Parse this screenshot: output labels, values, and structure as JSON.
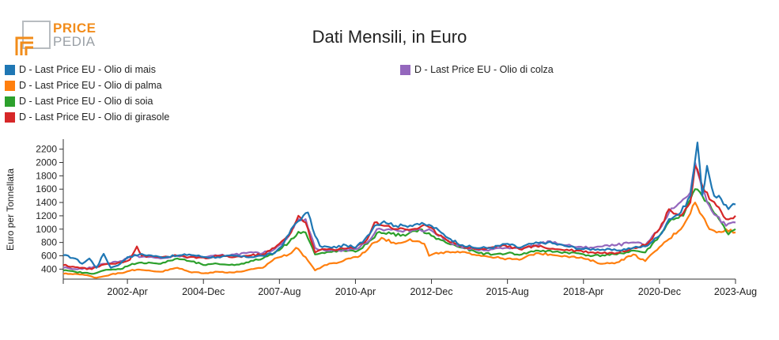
{
  "logo": {
    "word1": "PRICE",
    "word2": "PEDIA"
  },
  "colors": {
    "mais": "#1f77b4",
    "palma": "#ff7f0e",
    "soia": "#2ca02c",
    "girasole": "#d62728",
    "colza": "#9467bd"
  },
  "chart_data": {
    "type": "line",
    "title": "Dati Mensili, in Euro",
    "ylabel": "Euro per Tonnellata",
    "xlabel": "",
    "ylim": [
      250,
      2350
    ],
    "yticks": [
      400,
      600,
      800,
      1000,
      1200,
      1400,
      1600,
      1800,
      2000,
      2200
    ],
    "xrange": [
      "2000-01",
      "2023-08"
    ],
    "xticks": [
      {
        "date": "2002-04",
        "label": "2002-Apr"
      },
      {
        "date": "2004-12",
        "label": "2004-Dec"
      },
      {
        "date": "2007-08",
        "label": "2007-Aug"
      },
      {
        "date": "2010-04",
        "label": "2010-Apr"
      },
      {
        "date": "2012-12",
        "label": "2012-Dec"
      },
      {
        "date": "2015-08",
        "label": "2015-Aug"
      },
      {
        "date": "2018-04",
        "label": "2018-Apr"
      },
      {
        "date": "2020-12",
        "label": "2020-Dec"
      },
      {
        "date": "2023-08",
        "label": "2023-Aug"
      }
    ],
    "legend_position": "top-left",
    "series": [
      {
        "name": "D - Last Price EU - Olio di mais",
        "color": "#1f77b4",
        "points": [
          [
            "2000-01",
            610
          ],
          [
            "2000-06",
            560
          ],
          [
            "2000-09",
            480
          ],
          [
            "2000-12",
            560
          ],
          [
            "2001-03",
            420
          ],
          [
            "2001-06",
            630
          ],
          [
            "2001-09",
            420
          ],
          [
            "2002-01",
            480
          ],
          [
            "2002-04",
            580
          ],
          [
            "2002-09",
            620
          ],
          [
            "2003-01",
            610
          ],
          [
            "2003-06",
            580
          ],
          [
            "2004-01",
            600
          ],
          [
            "2004-06",
            620
          ],
          [
            "2005-01",
            580
          ],
          [
            "2005-06",
            580
          ],
          [
            "2006-01",
            600
          ],
          [
            "2006-06",
            580
          ],
          [
            "2007-01",
            600
          ],
          [
            "2007-06",
            640
          ],
          [
            "2007-10",
            800
          ],
          [
            "2008-02",
            1050
          ],
          [
            "2008-06",
            1200
          ],
          [
            "2008-08",
            1250
          ],
          [
            "2008-11",
            900
          ],
          [
            "2009-01",
            750
          ],
          [
            "2009-06",
            720
          ],
          [
            "2009-12",
            760
          ],
          [
            "2010-04",
            720
          ],
          [
            "2010-08",
            850
          ],
          [
            "2010-12",
            1050
          ],
          [
            "2011-04",
            1120
          ],
          [
            "2011-09",
            1050
          ],
          [
            "2012-01",
            1050
          ],
          [
            "2012-06",
            1080
          ],
          [
            "2012-12",
            1050
          ],
          [
            "2013-04",
            950
          ],
          [
            "2013-08",
            850
          ],
          [
            "2014-01",
            760
          ],
          [
            "2014-06",
            720
          ],
          [
            "2015-01",
            720
          ],
          [
            "2015-08",
            780
          ],
          [
            "2016-01",
            720
          ],
          [
            "2016-06",
            780
          ],
          [
            "2017-01",
            800
          ],
          [
            "2017-08",
            750
          ],
          [
            "2018-04",
            700
          ],
          [
            "2018-10",
            700
          ],
          [
            "2019-06",
            680
          ],
          [
            "2020-01",
            720
          ],
          [
            "2020-06",
            740
          ],
          [
            "2020-12",
            900
          ],
          [
            "2021-04",
            1150
          ],
          [
            "2021-09",
            1250
          ],
          [
            "2022-01",
            1500
          ],
          [
            "2022-04",
            2300
          ],
          [
            "2022-06",
            1500
          ],
          [
            "2022-08",
            1950
          ],
          [
            "2022-11",
            1500
          ],
          [
            "2023-02",
            1450
          ],
          [
            "2023-05",
            1300
          ],
          [
            "2023-08",
            1370
          ]
        ]
      },
      {
        "name": "D - Last Price EU - Olio di palma",
        "color": "#ff7f0e",
        "points": [
          [
            "2000-01",
            330
          ],
          [
            "2000-06",
            330
          ],
          [
            "2000-12",
            300
          ],
          [
            "2001-03",
            270
          ],
          [
            "2001-09",
            320
          ],
          [
            "2002-01",
            340
          ],
          [
            "2002-06",
            390
          ],
          [
            "2003-01",
            380
          ],
          [
            "2003-06",
            360
          ],
          [
            "2004-01",
            420
          ],
          [
            "2004-06",
            360
          ],
          [
            "2005-01",
            340
          ],
          [
            "2005-06",
            360
          ],
          [
            "2006-01",
            350
          ],
          [
            "2006-06",
            380
          ],
          [
            "2007-01",
            420
          ],
          [
            "2007-06",
            560
          ],
          [
            "2007-12",
            620
          ],
          [
            "2008-03",
            720
          ],
          [
            "2008-07",
            580
          ],
          [
            "2008-11",
            380
          ],
          [
            "2009-03",
            460
          ],
          [
            "2009-09",
            500
          ],
          [
            "2010-01",
            560
          ],
          [
            "2010-06",
            600
          ],
          [
            "2010-12",
            800
          ],
          [
            "2011-03",
            870
          ],
          [
            "2011-09",
            780
          ],
          [
            "2012-03",
            850
          ],
          [
            "2012-09",
            780
          ],
          [
            "2012-11",
            600
          ],
          [
            "2013-04",
            650
          ],
          [
            "2013-10",
            650
          ],
          [
            "2014-04",
            640
          ],
          [
            "2014-10",
            600
          ],
          [
            "2015-06",
            560
          ],
          [
            "2016-01",
            540
          ],
          [
            "2016-08",
            640
          ],
          [
            "2017-02",
            620
          ],
          [
            "2017-08",
            600
          ],
          [
            "2018-04",
            560
          ],
          [
            "2018-12",
            480
          ],
          [
            "2019-06",
            500
          ],
          [
            "2020-01",
            620
          ],
          [
            "2020-06",
            520
          ],
          [
            "2020-12",
            730
          ],
          [
            "2021-04",
            850
          ],
          [
            "2021-10",
            1050
          ],
          [
            "2022-03",
            1400
          ],
          [
            "2022-06",
            1200
          ],
          [
            "2022-09",
            1000
          ],
          [
            "2022-12",
            950
          ],
          [
            "2023-04",
            1000
          ],
          [
            "2023-08",
            950
          ]
        ]
      },
      {
        "name": "D - Last Price EU - Olio di soia",
        "color": "#2ca02c",
        "points": [
          [
            "2000-01",
            380
          ],
          [
            "2000-06",
            360
          ],
          [
            "2001-01",
            330
          ],
          [
            "2001-06",
            380
          ],
          [
            "2002-01",
            400
          ],
          [
            "2002-06",
            480
          ],
          [
            "2003-01",
            500
          ],
          [
            "2003-06",
            480
          ],
          [
            "2004-01",
            560
          ],
          [
            "2004-06",
            520
          ],
          [
            "2005-01",
            460
          ],
          [
            "2005-06",
            480
          ],
          [
            "2006-01",
            460
          ],
          [
            "2006-06",
            500
          ],
          [
            "2007-01",
            560
          ],
          [
            "2007-06",
            650
          ],
          [
            "2007-12",
            800
          ],
          [
            "2008-04",
            960
          ],
          [
            "2008-07",
            950
          ],
          [
            "2008-11",
            620
          ],
          [
            "2009-03",
            640
          ],
          [
            "2009-09",
            680
          ],
          [
            "2010-04",
            660
          ],
          [
            "2010-09",
            780
          ],
          [
            "2011-02",
            960
          ],
          [
            "2011-07",
            930
          ],
          [
            "2012-01",
            900
          ],
          [
            "2012-07",
            1000
          ],
          [
            "2012-12",
            900
          ],
          [
            "2013-06",
            800
          ],
          [
            "2014-01",
            720
          ],
          [
            "2014-08",
            640
          ],
          [
            "2015-02",
            620
          ],
          [
            "2015-08",
            640
          ],
          [
            "2016-02",
            620
          ],
          [
            "2016-08",
            680
          ],
          [
            "2017-04",
            660
          ],
          [
            "2018-01",
            640
          ],
          [
            "2018-08",
            600
          ],
          [
            "2019-06",
            620
          ],
          [
            "2020-01",
            680
          ],
          [
            "2020-06",
            650
          ],
          [
            "2020-12",
            900
          ],
          [
            "2021-05",
            1150
          ],
          [
            "2021-10",
            1200
          ],
          [
            "2022-03",
            1600
          ],
          [
            "2022-06",
            1500
          ],
          [
            "2022-10",
            1300
          ],
          [
            "2023-02",
            1100
          ],
          [
            "2023-05",
            920
          ],
          [
            "2023-08",
            1000
          ]
        ]
      },
      {
        "name": "D - Last Price EU - Olio di girasole",
        "color": "#d62728",
        "points": [
          [
            "2000-01",
            460
          ],
          [
            "2000-06",
            430
          ],
          [
            "2001-01",
            400
          ],
          [
            "2001-06",
            470
          ],
          [
            "2002-01",
            500
          ],
          [
            "2002-05",
            540
          ],
          [
            "2002-08",
            740
          ],
          [
            "2002-10",
            600
          ],
          [
            "2003-06",
            580
          ],
          [
            "2004-01",
            600
          ],
          [
            "2004-06",
            580
          ],
          [
            "2005-01",
            560
          ],
          [
            "2005-06",
            600
          ],
          [
            "2006-01",
            580
          ],
          [
            "2006-06",
            600
          ],
          [
            "2007-01",
            620
          ],
          [
            "2007-06",
            720
          ],
          [
            "2007-12",
            900
          ],
          [
            "2008-04",
            1200
          ],
          [
            "2008-07",
            1100
          ],
          [
            "2008-11",
            650
          ],
          [
            "2009-03",
            700
          ],
          [
            "2009-09",
            700
          ],
          [
            "2010-04",
            720
          ],
          [
            "2010-09",
            850
          ],
          [
            "2010-12",
            1100
          ],
          [
            "2011-05",
            1050
          ],
          [
            "2011-10",
            1000
          ],
          [
            "2012-04",
            1000
          ],
          [
            "2012-10",
            1050
          ],
          [
            "2013-04",
            900
          ],
          [
            "2013-10",
            780
          ],
          [
            "2014-04",
            720
          ],
          [
            "2014-10",
            700
          ],
          [
            "2015-06",
            760
          ],
          [
            "2016-01",
            700
          ],
          [
            "2016-08",
            750
          ],
          [
            "2017-04",
            700
          ],
          [
            "2018-01",
            680
          ],
          [
            "2018-08",
            650
          ],
          [
            "2019-06",
            640
          ],
          [
            "2020-01",
            720
          ],
          [
            "2020-06",
            760
          ],
          [
            "2020-12",
            1000
          ],
          [
            "2021-04",
            1300
          ],
          [
            "2021-09",
            1200
          ],
          [
            "2022-01",
            1400
          ],
          [
            "2022-03",
            1950
          ],
          [
            "2022-06",
            1650
          ],
          [
            "2022-09",
            1450
          ],
          [
            "2022-12",
            1350
          ],
          [
            "2023-04",
            1150
          ],
          [
            "2023-08",
            1200
          ]
        ]
      },
      {
        "name": "D - Last Price EU - Olio di colza",
        "color": "#9467bd",
        "points": [
          [
            "2000-01",
            420
          ],
          [
            "2000-06",
            400
          ],
          [
            "2001-01",
            420
          ],
          [
            "2001-06",
            480
          ],
          [
            "2002-01",
            520
          ],
          [
            "2002-06",
            600
          ],
          [
            "2003-01",
            580
          ],
          [
            "2003-06",
            560
          ],
          [
            "2004-01",
            600
          ],
          [
            "2004-06",
            580
          ],
          [
            "2005-01",
            580
          ],
          [
            "2005-06",
            600
          ],
          [
            "2006-01",
            620
          ],
          [
            "2006-06",
            640
          ],
          [
            "2007-01",
            640
          ],
          [
            "2007-06",
            700
          ],
          [
            "2007-12",
            900
          ],
          [
            "2008-04",
            1150
          ],
          [
            "2008-07",
            1150
          ],
          [
            "2008-11",
            720
          ],
          [
            "2009-03",
            680
          ],
          [
            "2009-09",
            680
          ],
          [
            "2010-04",
            700
          ],
          [
            "2010-09",
            800
          ],
          [
            "2011-01",
            1000
          ],
          [
            "2011-06",
            1000
          ],
          [
            "2011-12",
            960
          ],
          [
            "2012-06",
            1000
          ],
          [
            "2012-12",
            980
          ],
          [
            "2013-06",
            840
          ],
          [
            "2014-01",
            720
          ],
          [
            "2014-08",
            680
          ],
          [
            "2015-02",
            700
          ],
          [
            "2015-08",
            720
          ],
          [
            "2016-02",
            700
          ],
          [
            "2016-08",
            760
          ],
          [
            "2017-02",
            820
          ],
          [
            "2017-08",
            760
          ],
          [
            "2018-04",
            720
          ],
          [
            "2018-12",
            740
          ],
          [
            "2019-06",
            760
          ],
          [
            "2020-01",
            800
          ],
          [
            "2020-06",
            760
          ],
          [
            "2020-12",
            1000
          ],
          [
            "2021-04",
            1250
          ],
          [
            "2021-10",
            1450
          ],
          [
            "2022-01",
            1550
          ],
          [
            "2022-03",
            2000
          ],
          [
            "2022-06",
            1600
          ],
          [
            "2022-09",
            1350
          ],
          [
            "2022-12",
            1200
          ],
          [
            "2023-04",
            1050
          ],
          [
            "2023-08",
            1100
          ]
        ]
      }
    ]
  }
}
